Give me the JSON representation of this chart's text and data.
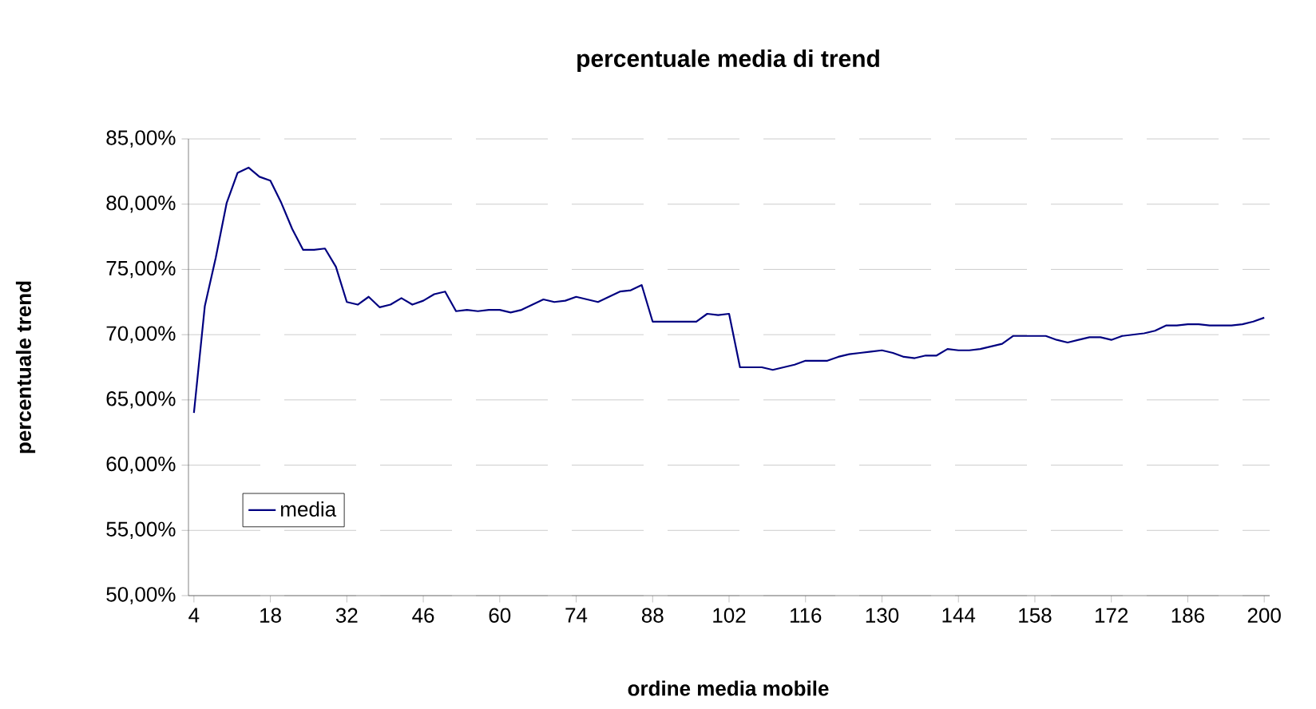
{
  "chart_data": {
    "type": "line",
    "title": "percentuale media di trend",
    "xlabel": "ordine media mobile",
    "ylabel": "percentuale trend",
    "x": [
      4,
      6,
      8,
      10,
      12,
      14,
      16,
      18,
      20,
      22,
      24,
      26,
      28,
      30,
      32,
      34,
      36,
      38,
      40,
      42,
      44,
      46,
      48,
      50,
      52,
      54,
      56,
      58,
      60,
      62,
      64,
      66,
      68,
      70,
      72,
      74,
      76,
      78,
      80,
      82,
      84,
      86,
      88,
      90,
      92,
      94,
      96,
      98,
      100,
      102,
      104,
      106,
      108,
      110,
      112,
      114,
      116,
      118,
      120,
      122,
      124,
      126,
      128,
      130,
      132,
      134,
      136,
      138,
      140,
      142,
      144,
      146,
      148,
      150,
      152,
      154,
      156,
      158,
      160,
      162,
      164,
      166,
      168,
      170,
      172,
      174,
      176,
      178,
      180,
      182,
      184,
      186,
      188,
      190,
      192,
      194,
      196,
      198,
      200
    ],
    "series": [
      {
        "name": "media",
        "color": "#000080",
        "values": [
          64.0,
          72.2,
          75.9,
          80.1,
          82.4,
          82.8,
          82.1,
          81.8,
          80.1,
          78.1,
          76.5,
          76.5,
          76.6,
          75.2,
          72.5,
          72.3,
          72.9,
          72.1,
          72.3,
          72.8,
          72.3,
          72.6,
          73.1,
          73.3,
          71.8,
          71.9,
          71.8,
          71.9,
          71.9,
          71.7,
          71.9,
          72.3,
          72.7,
          72.5,
          72.6,
          72.9,
          72.7,
          72.5,
          72.9,
          73.3,
          73.4,
          73.8,
          71.0,
          71.0,
          71.0,
          71.0,
          71.0,
          71.6,
          71.5,
          71.6,
          67.5,
          67.5,
          67.5,
          67.3,
          67.5,
          67.7,
          68.0,
          68.0,
          68.0,
          68.3,
          68.5,
          68.6,
          68.7,
          68.8,
          68.6,
          68.3,
          68.2,
          68.4,
          68.4,
          68.9,
          68.8,
          68.8,
          68.9,
          69.1,
          69.3,
          69.9,
          69.9,
          69.9,
          69.9,
          69.6,
          69.4,
          69.6,
          69.8,
          69.8,
          69.6,
          69.9,
          70.0,
          70.1,
          70.3,
          70.7,
          70.7,
          70.8,
          70.8,
          70.7,
          70.7,
          70.7,
          70.8,
          71.0,
          71.3
        ]
      }
    ],
    "xlim": [
      3,
      201
    ],
    "xticks": [
      4,
      18,
      32,
      46,
      60,
      74,
      88,
      102,
      116,
      130,
      144,
      158,
      172,
      186,
      200
    ],
    "ylim": [
      50,
      85
    ],
    "yticks": [
      {
        "value": 50,
        "label": "50,00%"
      },
      {
        "value": 55,
        "label": "55,00%"
      },
      {
        "value": 60,
        "label": "60,00%"
      },
      {
        "value": 65,
        "label": "65,00%"
      },
      {
        "value": 70,
        "label": "70,00%"
      },
      {
        "value": 75,
        "label": "75,00%"
      },
      {
        "value": 80,
        "label": "80,00%"
      },
      {
        "value": 85,
        "label": "85,00%"
      }
    ],
    "grid": "y",
    "legend": "bottom left",
    "marker": "none",
    "line_style": "solid"
  }
}
